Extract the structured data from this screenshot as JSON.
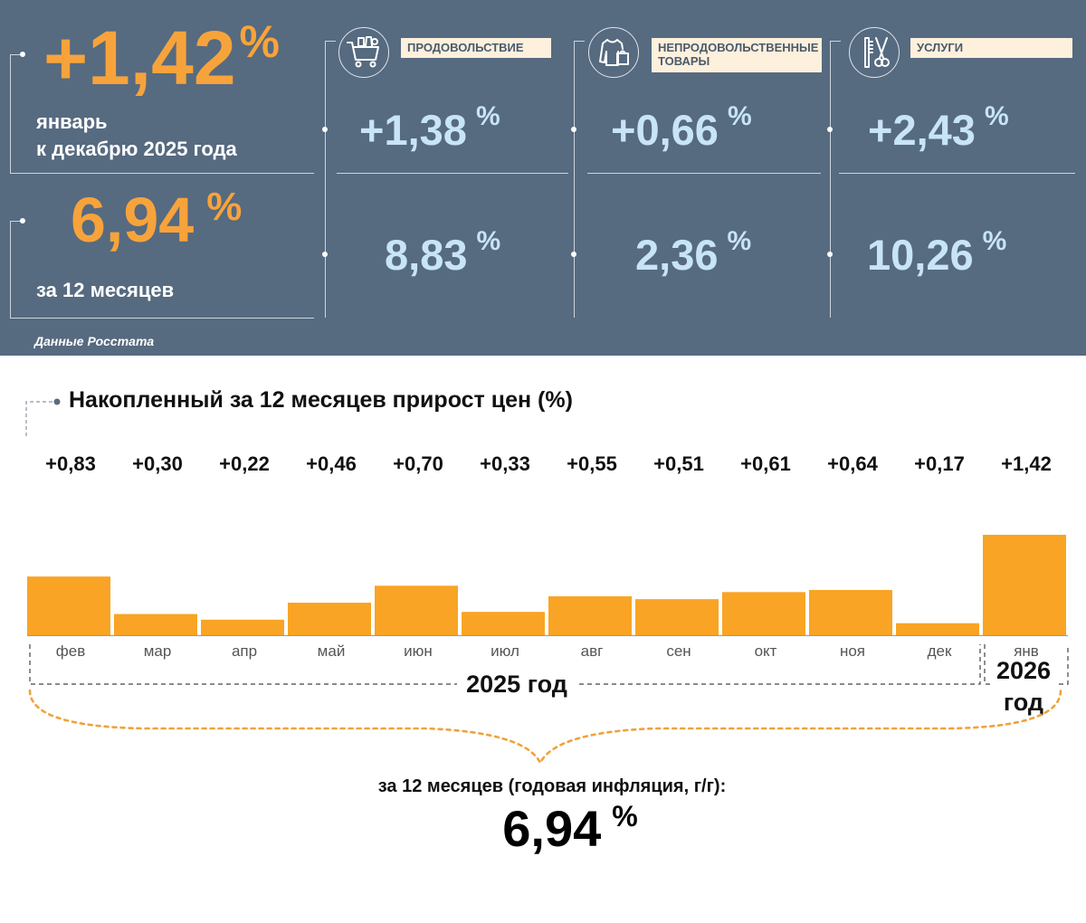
{
  "header": {
    "monthly_value": "+1,42",
    "monthly_unit": "%",
    "monthly_caption_line1": "январь",
    "monthly_caption_line2": "к декабрю 2025 года",
    "annual_value": "6,94",
    "annual_unit": "%",
    "annual_caption": "за 12 месяцев",
    "source": "Данные Росстата"
  },
  "categories": [
    {
      "label": "ПРОДОВОЛЬСТВИЕ",
      "icon": "shopping-cart-icon",
      "monthly": "+1,38",
      "annual": "8,83",
      "unit": "%"
    },
    {
      "label": "НЕПРОДОВОЛЬСТВЕННЫЕ ТОВАРЫ",
      "icon": "clothing-icon",
      "monthly": "+0,66",
      "annual": "2,36",
      "unit": "%"
    },
    {
      "label": "УСЛУГИ",
      "icon": "comb-scissors-icon",
      "monthly": "+2,43",
      "annual": "10,26",
      "unit": "%"
    }
  ],
  "colors": {
    "panel": "#566a80",
    "accent": "#f7a33b",
    "bar": "#f9a424",
    "light_value": "#c8e4f7"
  },
  "chart_data": {
    "type": "bar",
    "title": "Накопленный за 12 месяцев прирост цен (%)",
    "categories": [
      "фев",
      "мар",
      "апр",
      "май",
      "июн",
      "июл",
      "авг",
      "сен",
      "окт",
      "ноя",
      "дек",
      "янв"
    ],
    "values": [
      0.83,
      0.3,
      0.22,
      0.46,
      0.7,
      0.33,
      0.55,
      0.51,
      0.61,
      0.64,
      0.17,
      1.42
    ],
    "value_labels": [
      "+0,83",
      "+0,30",
      "+0,22",
      "+0,46",
      "+0,70",
      "+0,33",
      "+0,55",
      "+0,51",
      "+0,61",
      "+0,64",
      "+0,17",
      "+1,42"
    ],
    "groups": [
      {
        "label": "2025 год",
        "months": "фев–дек"
      },
      {
        "label_line1": "2026",
        "label_line2": "год",
        "months": "янв"
      }
    ],
    "ylim": [
      0,
      1.42
    ],
    "xlabel": "",
    "ylabel": ""
  },
  "footer": {
    "caption": "за 12 месяцев (годовая инфляция, г/г):",
    "value": "6,94",
    "unit": "%"
  }
}
